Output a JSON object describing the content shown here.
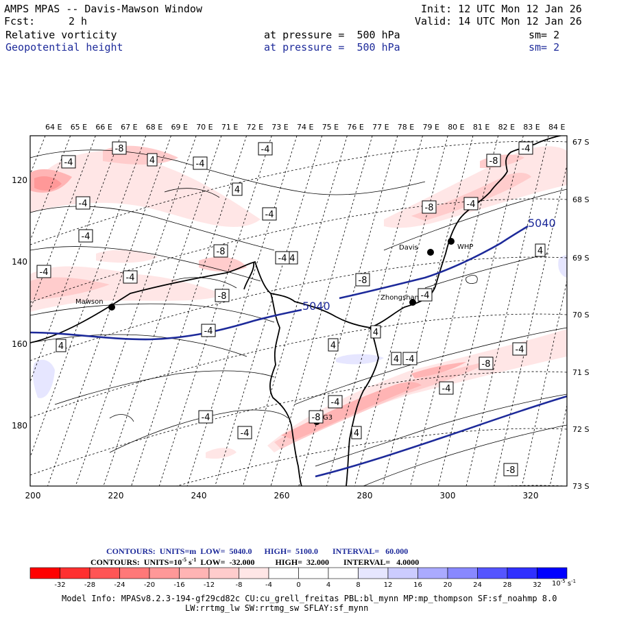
{
  "header": {
    "title": "AMPS MPAS -- Davis-Mawson Window",
    "init": "Init: 12 UTC Mon 12 Jan 26",
    "fcst_label": "Fcst:",
    "fcst_value": "2 h",
    "valid": "Valid: 14 UTC Mon 12 Jan 26",
    "field1": "Relative vorticity",
    "field1_level": "at pressure =  500 hPa",
    "field1_sm": "sm= 2",
    "field2": "Geopotential height",
    "field2_level": "at pressure =  500 hPa",
    "field2_sm": "sm= 2"
  },
  "colors": {
    "contour_blue": "#1d2a9a",
    "neg_strong": "#ff0000",
    "pos_strong": "#0000ff"
  },
  "map": {
    "top_lon_labels": [
      "64 E",
      "65 E",
      "66 E",
      "67 E",
      "68 E",
      "69 E",
      "70 E",
      "71 E",
      "72 E",
      "73 E",
      "74 E",
      "75 E",
      "76 E",
      "77 E",
      "78 E",
      "79 E",
      "80 E",
      "81 E",
      "82 E",
      "83 E",
      "84 E"
    ],
    "right_lat_labels": [
      "67 S",
      "68 S",
      "69 S",
      "70 S",
      "71 S",
      "72 S",
      "73 S"
    ],
    "left_y_labels": [
      "120",
      "140",
      "160",
      "180"
    ],
    "bottom_x_labels": [
      "200",
      "220",
      "240",
      "260",
      "280",
      "300",
      "320"
    ],
    "stations": [
      "Mawson",
      "Davis",
      "WHP",
      "Zhongshan",
      "G3"
    ],
    "height_labels": [
      "5040",
      "5040"
    ],
    "vort_labels": [
      "-4",
      "-8",
      "4",
      "-4",
      "-4",
      "-4",
      "-4",
      "-8",
      "-8",
      "-4",
      "4",
      "-4",
      "-4",
      "-8",
      "-4",
      "-4",
      "-4",
      "-8",
      "-8",
      "-4",
      "-4",
      "4",
      "4",
      "4",
      "4",
      "-8",
      "-4",
      "-4",
      "-4",
      "-4",
      "-8",
      "4",
      "-8",
      "-4",
      "-4",
      "4",
      "-4"
    ]
  },
  "footer": {
    "line1": "CONTOURS:  UNITS=m  LOW=  5040.0      HIGH=  5100.0       INTERVAL=   60.000",
    "line2_a": "CONTOURS:  UNITS=10",
    "line2_exp": "-5",
    "line2_b": " s",
    "line2_exp2": "-1",
    "line2_c": "  LOW=  -32.000          HIGH=  32.000       INTERVAL=   4.0000",
    "colorbar_labels": [
      "-32",
      "-28",
      "-24",
      "-20",
      "-16",
      "-12",
      "-8",
      "-4",
      "0",
      "4",
      "8",
      "12",
      "16",
      "20",
      "24",
      "28",
      "32"
    ],
    "colorbar_unit": "10",
    "colorbar_unit_exp": "-5",
    "colorbar_unit_s": " s",
    "colorbar_unit_exp2": "-1",
    "colorbar_colors": [
      "#ff0000",
      "#ff3030",
      "#ff5555",
      "#ff7878",
      "#ff9898",
      "#ffb4b4",
      "#ffcccc",
      "#ffe6e6",
      "#ffffff",
      "#ffffff",
      "#e6e6ff",
      "#ccccff",
      "#aaaaff",
      "#8888ff",
      "#5555ff",
      "#3030ff",
      "#0000ff"
    ],
    "model_info_1": "Model Info: MPASv8.2.3-194-gf29cd82c CU:cu_grell_freitas PBL:bl_mynn MP:mp_thompson SF:sf_noahmp 8.0",
    "model_info_2": "LW:rrtmg_lw SW:rrtmg_sw SFLAY:sf_mynn"
  }
}
